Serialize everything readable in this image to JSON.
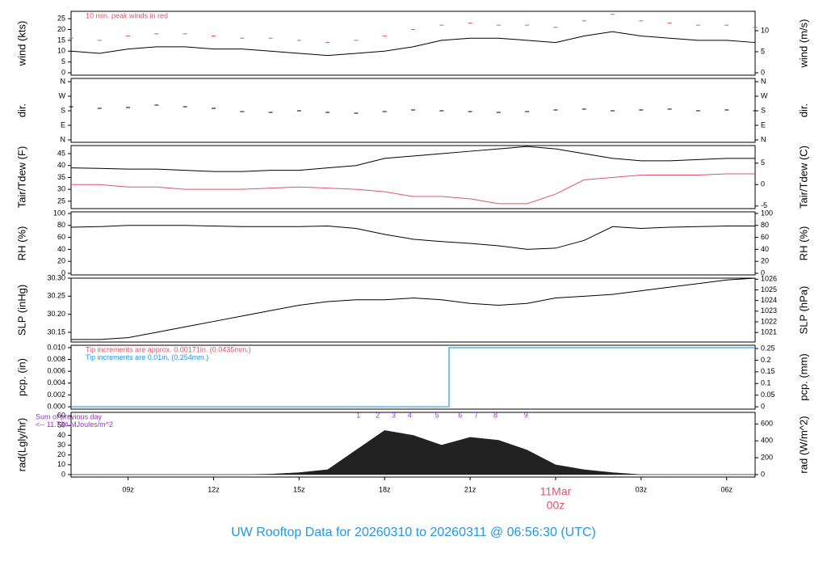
{
  "footer": {
    "text": "UW Rooftop Data for 20260310  to  20260311 @ 06:56:30  (UTC)",
    "color": "#2297e6"
  },
  "chart_data": [
    {
      "type": "line",
      "ylabel": "wind (kts)",
      "y2label": "wind (m/s)",
      "xlim": [
        7,
        31
      ],
      "ylim": [
        -1.1,
        28.4
      ],
      "yticks": [
        0,
        5,
        10,
        15,
        20,
        25
      ],
      "y2lim": [
        -0.57,
        14.6
      ],
      "y2ticks": [
        0,
        5,
        10
      ],
      "annotations": [
        {
          "text": "10 min. peak winds in red",
          "color": "#df536b"
        }
      ],
      "x": [
        7,
        8,
        9,
        10,
        11,
        12,
        13,
        14,
        15,
        16,
        17,
        18,
        19,
        20,
        21,
        22,
        23,
        24,
        25,
        26,
        27,
        28,
        29,
        30,
        31
      ],
      "series": [
        {
          "type": "line",
          "color": "#000000",
          "values": [
            10,
            9,
            11,
            12,
            12,
            11,
            11,
            10,
            9,
            8,
            9,
            10,
            12,
            15,
            16,
            16,
            15,
            14,
            17,
            19,
            17,
            16,
            15,
            15,
            14
          ]
        },
        {
          "type": "scatter",
          "color": "#df536b",
          "values": [
            16,
            15,
            17,
            18,
            18,
            17,
            16,
            16,
            15,
            14,
            15,
            17,
            20,
            22,
            23,
            22,
            22,
            21,
            24,
            27,
            24,
            23,
            22,
            22,
            21
          ]
        }
      ]
    },
    {
      "type": "line",
      "ylabel": "dir.",
      "y2label": "dir.",
      "xlim": [
        7,
        31
      ],
      "ylim": [
        -15,
        380
      ],
      "yticks": [
        {
          "value": 0,
          "label": "N"
        },
        {
          "value": 90,
          "label": "E"
        },
        {
          "value": 180,
          "label": "S"
        },
        {
          "value": 270,
          "label": "W"
        },
        {
          "value": 360,
          "label": "N"
        }
      ],
      "y2lim": [
        -15,
        380
      ],
      "y2ticks": [
        {
          "value": 0,
          "label": "N"
        },
        {
          "value": 90,
          "label": "E"
        },
        {
          "value": 180,
          "label": "S"
        },
        {
          "value": 270,
          "label": "W"
        },
        {
          "value": 360,
          "label": "N"
        }
      ],
      "x": [
        7,
        8,
        9,
        10,
        11,
        12,
        13,
        14,
        15,
        16,
        17,
        18,
        19,
        20,
        21,
        22,
        23,
        24,
        25,
        26,
        27,
        28,
        29,
        30,
        31
      ],
      "series": [
        {
          "type": "scatter",
          "color": "#000000",
          "values": [
            205,
            195,
            200,
            215,
            205,
            195,
            175,
            170,
            180,
            170,
            165,
            175,
            185,
            180,
            175,
            170,
            175,
            185,
            190,
            180,
            185,
            190,
            180,
            185,
            180
          ]
        }
      ]
    },
    {
      "type": "line",
      "ylabel": "Tair/Tdew (F)",
      "y2label": "Tair/Tdew (C)",
      "xlim": [
        7,
        31
      ],
      "ylim": [
        21.9,
        48.4
      ],
      "yticks": [
        25,
        30,
        35,
        40,
        45
      ],
      "y2lim": [
        -5.6,
        9.1
      ],
      "y2ticks": [
        -5,
        0,
        5
      ],
      "x": [
        7,
        8,
        9,
        10,
        11,
        12,
        13,
        14,
        15,
        16,
        17,
        18,
        19,
        20,
        21,
        22,
        23,
        24,
        25,
        26,
        27,
        28,
        29,
        30,
        31
      ],
      "series": [
        {
          "type": "line",
          "color": "#000000",
          "values": [
            39,
            38.8,
            38.5,
            38.5,
            38,
            37.5,
            37.5,
            38,
            38,
            39,
            40,
            43,
            44,
            45,
            46,
            47,
            48,
            47,
            45,
            43,
            42,
            42,
            42.5,
            43,
            43
          ]
        },
        {
          "type": "line",
          "color": "#df536b",
          "values": [
            32,
            32,
            31,
            31,
            30,
            30,
            30,
            30.5,
            31,
            30.5,
            30,
            29,
            27,
            27,
            26,
            24,
            24,
            28,
            34,
            35,
            36,
            36,
            36,
            36.5,
            36.5
          ]
        }
      ]
    },
    {
      "type": "line",
      "ylabel": "RH (%)",
      "y2label": "RH (%)",
      "xlim": [
        7,
        31
      ],
      "ylim": [
        -2.7,
        102.7
      ],
      "yticks": [
        0,
        20,
        40,
        60,
        80,
        100
      ],
      "y2lim": [
        -2.7,
        102.7
      ],
      "y2ticks": [
        0,
        20,
        40,
        60,
        80,
        100
      ],
      "x": [
        7,
        8,
        9,
        10,
        11,
        12,
        13,
        14,
        15,
        16,
        17,
        18,
        19,
        20,
        21,
        22,
        23,
        24,
        25,
        26,
        27,
        28,
        29,
        30,
        31
      ],
      "series": [
        {
          "type": "line",
          "color": "#000000",
          "values": [
            77,
            78,
            80,
            80,
            80,
            79,
            78,
            78,
            78,
            79,
            75,
            65,
            57,
            53,
            50,
            46,
            40,
            42,
            55,
            78,
            75,
            77,
            78,
            79,
            79
          ]
        }
      ]
    },
    {
      "type": "line",
      "ylabel": "SLP (inHg)",
      "y2label": "SLP (hPa)",
      "xlim": [
        7,
        31
      ],
      "ylim": [
        30.123,
        30.3
      ],
      "yticks": [
        30.15,
        {
          "value": 30.2,
          "label": "30.20"
        },
        30.25,
        {
          "value": 30.3,
          "label": "30.30"
        }
      ],
      "y2lim": [
        1020.1,
        1026.1
      ],
      "y2ticks": [
        1021,
        1022,
        1023,
        1024,
        1025,
        1026
      ],
      "x": [
        7,
        8,
        9,
        10,
        11,
        12,
        13,
        14,
        15,
        16,
        17,
        18,
        19,
        20,
        21,
        22,
        23,
        24,
        25,
        26,
        27,
        28,
        29,
        30,
        31
      ],
      "series": [
        {
          "type": "line",
          "color": "#000000",
          "values": [
            30.13,
            30.13,
            30.135,
            30.15,
            30.165,
            30.18,
            30.195,
            30.21,
            30.225,
            30.235,
            30.24,
            30.24,
            30.245,
            30.24,
            30.23,
            30.225,
            30.23,
            30.245,
            30.25,
            30.255,
            30.265,
            30.275,
            30.285,
            30.295,
            30.3
          ]
        }
      ]
    },
    {
      "type": "line",
      "ylabel": "pcp. (in)",
      "y2label": "pcp. (mm)",
      "xlim": [
        7,
        31
      ],
      "ylim": [
        -0.0004,
        0.0104
      ],
      "yticks": [
        {
          "value": 0,
          "label": "0.000"
        },
        0.002,
        0.004,
        0.006,
        0.008,
        {
          "value": 0.01,
          "label": "0.010"
        }
      ],
      "y2lim": [
        -0.01,
        0.264
      ],
      "y2ticks": [
        0,
        0.05,
        0.1,
        0.15,
        0.2,
        0.25
      ],
      "annotations": [
        {
          "text": "Tip increments are approx. 0.00171in. (0.0435mm.)",
          "color": "#df536b"
        },
        {
          "text": "Tip increments are 0.01in. (0.254mm.)",
          "color": "#2297e6"
        }
      ],
      "x": [
        7,
        20.26,
        31
      ],
      "series": [
        {
          "type": "step",
          "color": "#2297e6",
          "values": [
            0,
            0.01,
            0.01
          ]
        }
      ]
    },
    {
      "type": "line",
      "ylabel": "rad(Lgly/hr)",
      "y2label": "rad (W/m^2)",
      "xlim": [
        7,
        31
      ],
      "ylim": [
        -2.5,
        63.4
      ],
      "yticks": [
        0,
        10,
        20,
        30,
        40,
        50,
        60
      ],
      "y2lim": [
        -29,
        737
      ],
      "y2ticks": [
        0,
        200,
        400,
        600
      ],
      "annotations": [
        {
          "text": "Sum of previous day",
          "color": "#9a32cd"
        },
        {
          "text": "<-- 11.734 MJoules/m^2",
          "color": "#9a32cd"
        }
      ],
      "markers": {
        "color": "#9a32cd",
        "x": [
          17.08,
          17.76,
          18.32,
          18.88,
          19.84,
          20.65,
          21.21,
          21.89,
          22.96
        ],
        "labels": [
          "1",
          "2",
          "3",
          "4",
          "5",
          "6",
          "7",
          "8",
          "9"
        ]
      },
      "x": [
        7,
        8,
        9,
        10,
        11,
        12,
        13,
        14,
        15,
        16,
        17,
        18,
        19,
        20,
        21,
        22,
        23,
        24,
        25,
        26,
        27,
        28,
        29,
        30,
        31
      ],
      "series": [
        {
          "type": "area",
          "color": "#222222",
          "values": [
            0,
            0,
            0,
            0,
            0,
            0,
            0,
            0.5,
            2,
            5,
            25,
            45,
            40,
            30,
            38,
            35,
            25,
            10,
            5,
            2,
            0,
            0,
            0,
            0,
            0
          ]
        }
      ],
      "xticks": [
        {
          "value": 9,
          "label": "09z"
        },
        {
          "value": 12,
          "label": "12z"
        },
        {
          "value": 15,
          "label": "15z"
        },
        {
          "value": 18,
          "label": "18z"
        },
        {
          "value": 21,
          "label": "21z"
        },
        {
          "value": 24,
          "label": "00z",
          "color": "#df536b"
        },
        {
          "value": 27,
          "label": "03z"
        },
        {
          "value": 30,
          "label": "06z"
        }
      ],
      "date_label": {
        "text": "11Mar",
        "x": 24,
        "color": "#df536b"
      }
    }
  ]
}
